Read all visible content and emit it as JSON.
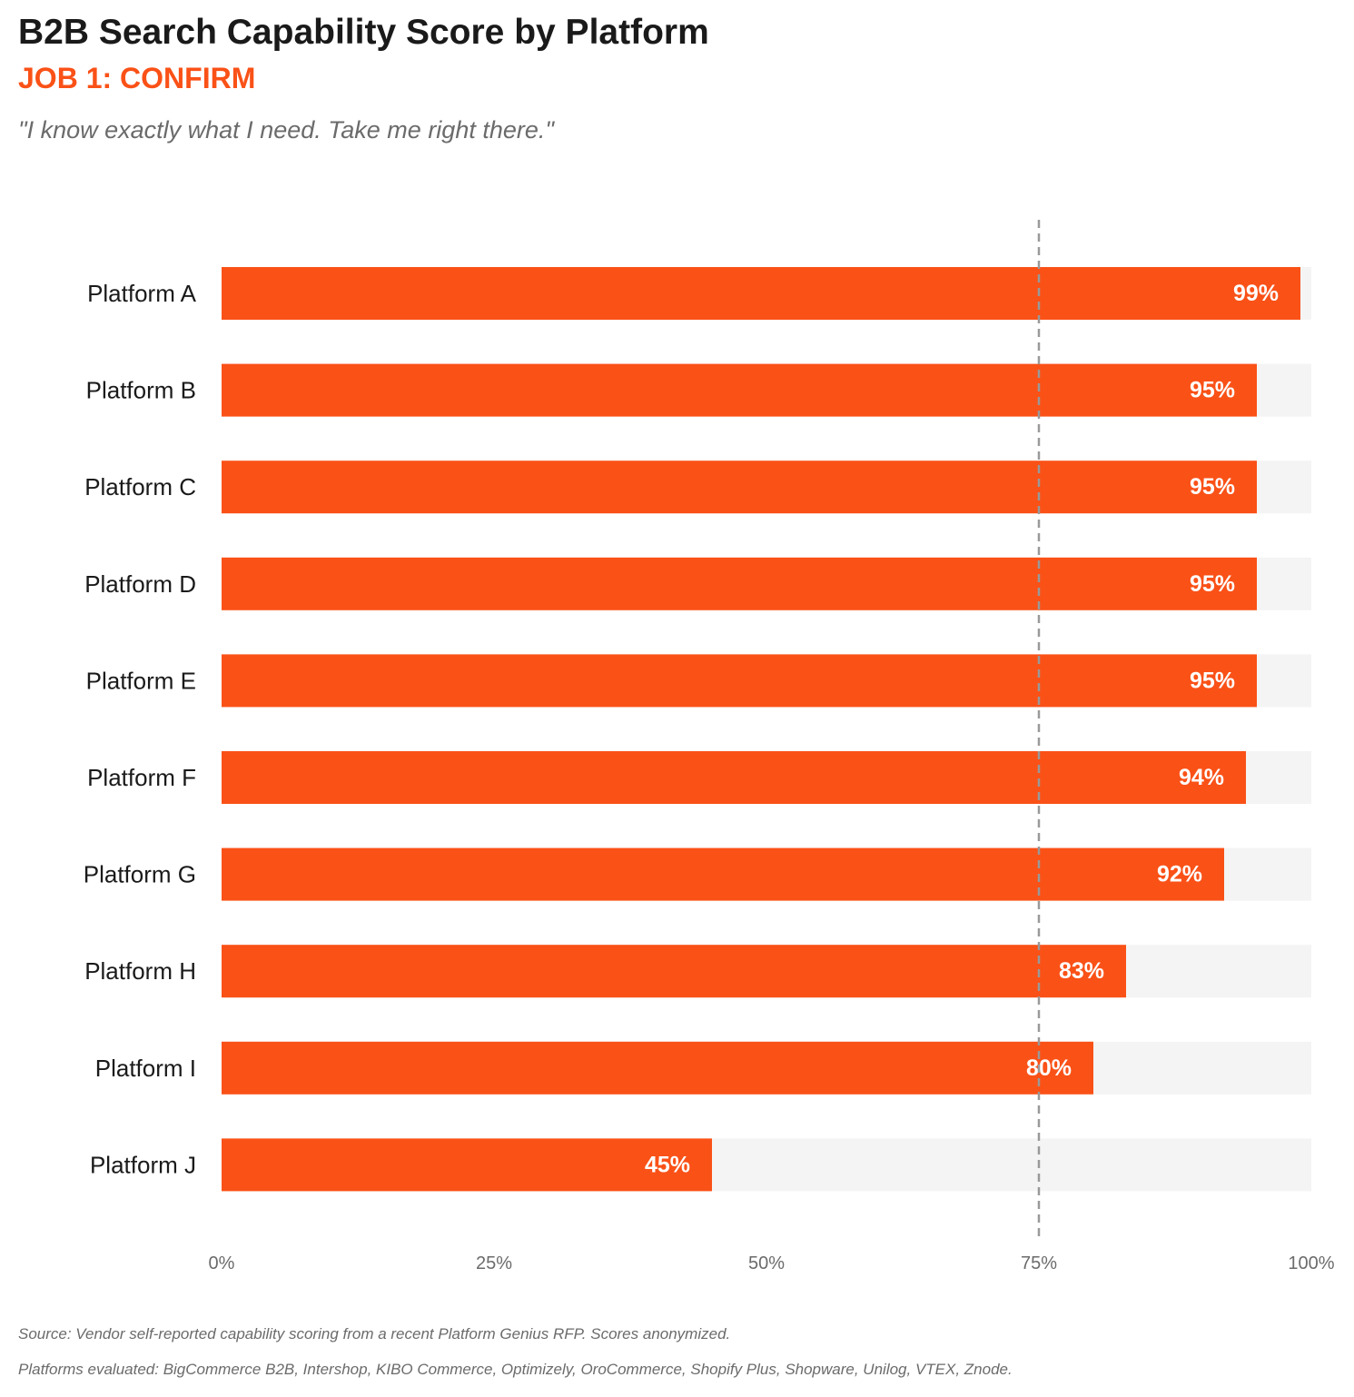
{
  "header": {
    "title": "B2B Search Capability Score by Platform",
    "subtitle": "JOB 1: CONFIRM",
    "quote": "\"I know exactly what I need. Take me right there.\""
  },
  "chart_data": {
    "type": "bar",
    "orientation": "horizontal",
    "categories": [
      "Platform A",
      "Platform B",
      "Platform C",
      "Platform D",
      "Platform E",
      "Platform F",
      "Platform G",
      "Platform H",
      "Platform I",
      "Platform J"
    ],
    "values": [
      99,
      95,
      95,
      95,
      95,
      94,
      92,
      83,
      80,
      45
    ],
    "value_labels": [
      "99%",
      "95%",
      "95%",
      "95%",
      "95%",
      "94%",
      "92%",
      "83%",
      "80%",
      "45%"
    ],
    "xlim": [
      0,
      100
    ],
    "x_ticks": [
      0,
      25,
      50,
      75,
      100
    ],
    "x_tick_labels": [
      "0%",
      "25%",
      "50%",
      "75%",
      "100%"
    ],
    "reference_line": 75,
    "grid": false,
    "colors": {
      "bar": "#fa5117",
      "track": "#f4f4f4",
      "reference_line": "#999999",
      "value_label": "#ffffff",
      "tick_label": "#6b6b6b"
    }
  },
  "footer": {
    "source": "Source: Vendor self-reported capability scoring from a recent Platform Genius RFP. Scores anonymized.",
    "platforms": "Platforms evaluated: BigCommerce B2B, Intershop, KIBO Commerce, Optimizely, OroCommerce, Shopify Plus, Shopware, Unilog, VTEX, Znode."
  }
}
